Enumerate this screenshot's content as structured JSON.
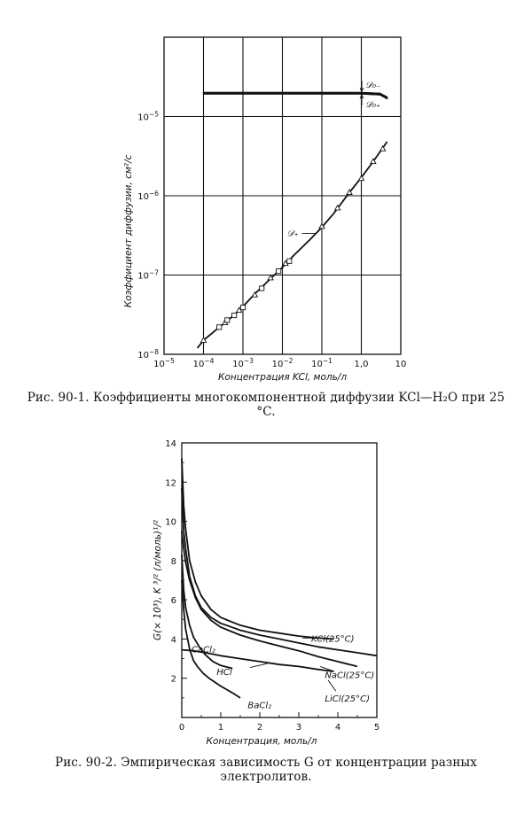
{
  "caption1": "Рис. 90-1. Коэффициенты многокомпонентной диффузии KCl—H₂O при 25 °C.",
  "caption2": "Рис. 90-2. Эмпирическая зависимость G от концентрации разных электролитов.",
  "chart_data": [
    {
      "type": "line",
      "xscale": "log",
      "yscale": "log",
      "xlim": [
        1e-05,
        10
      ],
      "ylim": [
        1e-08,
        0.0001
      ],
      "xlabel": "Концентрация KCl, моль/л",
      "ylabel": "Коэффициент     диффузии, см²/с",
      "xticks": [
        {
          "v": 1e-05,
          "b": "10",
          "e": "−5"
        },
        {
          "v": 0.0001,
          "b": "10",
          "e": "−4"
        },
        {
          "v": 0.001,
          "b": "10",
          "e": "−3"
        },
        {
          "v": 0.01,
          "b": "10",
          "e": "−2"
        },
        {
          "v": 0.1,
          "b": "10",
          "e": "−1"
        },
        {
          "v": 1,
          "b": "1,0",
          "e": ""
        },
        {
          "v": 10,
          "b": "10",
          "e": ""
        }
      ],
      "yticks": [
        {
          "v": 1e-08,
          "b": "10",
          "e": "−8"
        },
        {
          "v": 1e-07,
          "b": "10",
          "e": "−7"
        },
        {
          "v": 1e-06,
          "b": "10",
          "e": "−6"
        },
        {
          "v": 1e-05,
          "b": "10",
          "e": "−5"
        }
      ],
      "grid": true,
      "series": [
        {
          "name": "𝒟₀₋",
          "x": [
            0.0001,
            0.001,
            0.01,
            0.1,
            1.0,
            3.0,
            4.5
          ],
          "y": [
            2e-05,
            2e-05,
            2e-05,
            2e-05,
            2e-05,
            1.95e-05,
            1.75e-05
          ]
        },
        {
          "name": "𝒟₀₊",
          "x": [
            0.0001,
            0.001,
            0.01,
            0.1,
            1.0,
            3.0,
            4.5
          ],
          "y": [
            1.93e-05,
            1.93e-05,
            1.93e-05,
            1.93e-05,
            1.93e-05,
            1.88e-05,
            1.68e-05
          ]
        },
        {
          "name": "𝒟₊",
          "x": [
            7e-05,
            0.0001,
            0.0002,
            0.0005,
            0.001,
            0.002,
            0.005,
            0.01,
            0.02,
            0.05,
            0.1,
            0.2,
            0.5,
            1.0,
            2.0,
            4.5
          ],
          "y": [
            1.2e-08,
            1.5e-08,
            2e-08,
            2.9e-08,
            4e-08,
            5.8e-08,
            9e-08,
            1.25e-07,
            1.8e-07,
            2.8e-07,
            4e-07,
            6e-07,
            1.1e-06,
            1.7e-06,
            2.7e-06,
            4.8e-06
          ]
        }
      ],
      "points_triangle": [
        {
          "x": 0.0001,
          "y": 1.5e-08
        },
        {
          "x": 0.00035,
          "y": 2.5e-08
        },
        {
          "x": 0.0008,
          "y": 3.6e-08
        },
        {
          "x": 0.002,
          "y": 5.6e-08
        },
        {
          "x": 0.005,
          "y": 9.2e-08
        },
        {
          "x": 0.012,
          "y": 1.4e-07
        },
        {
          "x": 0.1,
          "y": 4.1e-07
        },
        {
          "x": 0.25,
          "y": 7e-07
        },
        {
          "x": 0.5,
          "y": 1.1e-06
        },
        {
          "x": 1.0,
          "y": 1.65e-06
        },
        {
          "x": 2.0,
          "y": 2.7e-06
        },
        {
          "x": 3.5,
          "y": 3.9e-06
        }
      ],
      "points_square": [
        {
          "x": 0.00025,
          "y": 2.2e-08
        },
        {
          "x": 0.0004,
          "y": 2.7e-08
        },
        {
          "x": 0.0006,
          "y": 3.1e-08
        },
        {
          "x": 0.001,
          "y": 3.9e-08
        },
        {
          "x": 0.003,
          "y": 6.8e-08
        },
        {
          "x": 0.008,
          "y": 1.12e-07
        },
        {
          "x": 0.015,
          "y": 1.5e-07
        }
      ],
      "annotations": [
        {
          "text": "𝒟₀₋"
        },
        {
          "text": "𝒟₀₊"
        },
        {
          "text": "𝒟₊"
        }
      ]
    },
    {
      "type": "line",
      "xlim": [
        0,
        5
      ],
      "ylim": [
        0,
        14
      ],
      "xlabel": "Концентрация, моль/л",
      "ylabel": "G(× 10³), K ³/² (л/моль)¹/²",
      "xticks": [
        0,
        1,
        2,
        3,
        4,
        5
      ],
      "yticks": [
        2,
        4,
        6,
        8,
        10,
        12,
        14
      ],
      "grid": false,
      "series": [
        {
          "name": "KCl(25°C)",
          "x": [
            0.0,
            0.05,
            0.1,
            0.2,
            0.35,
            0.5,
            0.75,
            1.0,
            1.5,
            2.0,
            2.5,
            3.0,
            3.5,
            3.9
          ],
          "y": [
            13.2,
            10.8,
            9.6,
            8.0,
            6.9,
            6.2,
            5.5,
            5.1,
            4.7,
            4.45,
            4.3,
            4.15,
            4.05,
            4.0
          ]
        },
        {
          "name": "NaCl(25°C)",
          "x": [
            0.0,
            0.05,
            0.1,
            0.2,
            0.35,
            0.5,
            0.75,
            1.0,
            1.5,
            2.0,
            2.5,
            3.0,
            3.5,
            4.0,
            4.5,
            5.0
          ],
          "y": [
            11.7,
            9.5,
            8.6,
            7.2,
            6.2,
            5.6,
            5.1,
            4.8,
            4.45,
            4.2,
            4.0,
            3.8,
            3.6,
            3.45,
            3.3,
            3.15
          ]
        },
        {
          "name": "LiCl(25°C)",
          "x": [
            0.0,
            0.05,
            0.1,
            0.2,
            0.35,
            0.5,
            0.75,
            1.0,
            1.5,
            2.0,
            2.5,
            3.0,
            3.5,
            4.0,
            4.5
          ],
          "y": [
            9.5,
            8.6,
            7.9,
            7.0,
            6.1,
            5.5,
            4.95,
            4.6,
            4.2,
            3.9,
            3.65,
            3.4,
            3.1,
            2.85,
            2.6
          ]
        },
        {
          "name": "CaCl₂",
          "x": [
            0.0,
            0.05,
            0.1,
            0.2,
            0.3,
            0.45,
            0.6,
            0.8,
            1.0,
            1.3
          ],
          "y": [
            8.3,
            6.5,
            5.6,
            4.7,
            4.1,
            3.6,
            3.2,
            2.85,
            2.65,
            2.5
          ]
        },
        {
          "name": "HCl",
          "x": [
            0.0,
            0.3,
            0.6,
            1.0,
            1.5,
            2.0,
            2.5,
            3.0,
            3.5,
            3.9
          ],
          "y": [
            3.45,
            3.4,
            3.3,
            3.15,
            3.0,
            2.85,
            2.7,
            2.6,
            2.45,
            2.35
          ]
        },
        {
          "name": "BaCl₂",
          "x": [
            0.0,
            0.05,
            0.1,
            0.2,
            0.3,
            0.4,
            0.55,
            0.7,
            1.0,
            1.3,
            1.5
          ],
          "y": [
            7.0,
            5.5,
            4.5,
            3.5,
            2.9,
            2.6,
            2.25,
            2.0,
            1.6,
            1.25,
            1.0
          ]
        }
      ],
      "annotations": [
        {
          "text": "KCl(25°C)",
          "x": 3.5,
          "y": 4.05
        },
        {
          "text": "NaCl(25°C)",
          "x": 3.85,
          "y": 2.2
        },
        {
          "text": "LiCl(25°C)",
          "x": 3.85,
          "y": 1.0
        },
        {
          "text": "CaCl₂",
          "x": 0.75,
          "y": 3.5
        },
        {
          "text": "HCl",
          "x": 1.35,
          "y": 2.35
        },
        {
          "text": "BaCl₂",
          "x": 1.6,
          "y": 0.65
        }
      ]
    }
  ]
}
